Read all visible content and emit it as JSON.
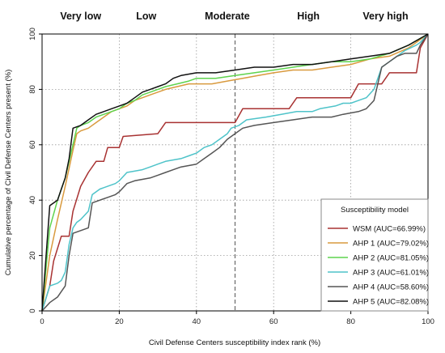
{
  "chart_data": {
    "type": "line",
    "xlabel": "Civil Defense Centers susceptibility index rank (%)",
    "ylabel": "Cumulative percentage of Civil Defense Centers present (%)",
    "xlim": [
      0,
      100
    ],
    "ylim": [
      0,
      100
    ],
    "x_ticks": [
      "0",
      "20",
      "40",
      "60",
      "80",
      "100"
    ],
    "y_ticks": [
      "0",
      "20",
      "40",
      "60",
      "80",
      "100"
    ],
    "grid": "dotted",
    "zones": [
      {
        "label": "Very low",
        "x": 10
      },
      {
        "label": "Low",
        "x": 27
      },
      {
        "label": "Moderate",
        "x": 48
      },
      {
        "label": "High",
        "x": 69
      },
      {
        "label": "Very high",
        "x": 89
      }
    ],
    "dividers_x": [
      20,
      40,
      50,
      60,
      80
    ],
    "dashed_divider_x": 50,
    "legend": {
      "title": "Susceptibility model",
      "position": "bottom-right"
    },
    "series": [
      {
        "name": "WSM (AUC=66.99%)",
        "color": "#a83232",
        "points": [
          [
            0,
            0
          ],
          [
            2,
            9
          ],
          [
            3,
            18
          ],
          [
            5,
            27
          ],
          [
            7,
            27
          ],
          [
            8,
            36
          ],
          [
            10,
            45
          ],
          [
            12,
            50
          ],
          [
            14,
            54
          ],
          [
            16,
            54
          ],
          [
            17,
            59
          ],
          [
            20,
            59
          ],
          [
            21,
            63
          ],
          [
            30,
            64
          ],
          [
            32,
            68
          ],
          [
            50,
            68
          ],
          [
            52,
            73
          ],
          [
            64,
            73
          ],
          [
            66,
            77
          ],
          [
            80,
            77
          ],
          [
            82,
            82
          ],
          [
            88,
            82
          ],
          [
            90,
            86
          ],
          [
            97,
            86
          ],
          [
            98,
            95
          ],
          [
            100,
            100
          ]
        ]
      },
      {
        "name": "AHP 1 (AUC=79.02%)",
        "color": "#d99a3e",
        "points": [
          [
            0,
            0
          ],
          [
            2,
            20
          ],
          [
            4,
            33
          ],
          [
            6,
            45
          ],
          [
            8,
            58
          ],
          [
            9,
            64
          ],
          [
            10,
            65
          ],
          [
            12,
            66
          ],
          [
            14,
            68
          ],
          [
            16,
            70
          ],
          [
            18,
            72
          ],
          [
            20,
            73
          ],
          [
            22,
            74
          ],
          [
            24,
            76
          ],
          [
            26,
            77
          ],
          [
            28,
            78
          ],
          [
            30,
            79
          ],
          [
            32,
            80
          ],
          [
            35,
            81
          ],
          [
            38,
            82
          ],
          [
            40,
            82
          ],
          [
            44,
            82
          ],
          [
            48,
            83
          ],
          [
            52,
            84
          ],
          [
            56,
            85
          ],
          [
            60,
            86
          ],
          [
            65,
            87
          ],
          [
            70,
            87
          ],
          [
            75,
            88
          ],
          [
            80,
            89
          ],
          [
            85,
            91
          ],
          [
            90,
            92
          ],
          [
            95,
            95
          ],
          [
            100,
            100
          ]
        ]
      },
      {
        "name": "AHP 2 (AUC=81.05%)",
        "color": "#5fd34e",
        "points": [
          [
            0,
            0
          ],
          [
            2,
            30
          ],
          [
            4,
            40
          ],
          [
            6,
            48
          ],
          [
            8,
            60
          ],
          [
            9,
            66
          ],
          [
            10,
            67
          ],
          [
            12,
            68
          ],
          [
            14,
            70
          ],
          [
            16,
            71
          ],
          [
            18,
            72
          ],
          [
            20,
            73
          ],
          [
            22,
            75
          ],
          [
            24,
            76
          ],
          [
            26,
            78
          ],
          [
            28,
            79
          ],
          [
            30,
            80
          ],
          [
            32,
            81
          ],
          [
            35,
            82
          ],
          [
            38,
            83
          ],
          [
            40,
            84
          ],
          [
            45,
            84
          ],
          [
            50,
            85
          ],
          [
            55,
            86
          ],
          [
            60,
            87
          ],
          [
            65,
            88
          ],
          [
            70,
            89
          ],
          [
            75,
            90
          ],
          [
            80,
            90
          ],
          [
            85,
            91
          ],
          [
            90,
            93
          ],
          [
            95,
            96
          ],
          [
            100,
            100
          ]
        ]
      },
      {
        "name": "AHP 3 (AUC=61.01%)",
        "color": "#4ec3c9",
        "points": [
          [
            0,
            0
          ],
          [
            2,
            9
          ],
          [
            4,
            10
          ],
          [
            5,
            11
          ],
          [
            6,
            14
          ],
          [
            7,
            24
          ],
          [
            8,
            30
          ],
          [
            9,
            32
          ],
          [
            10,
            33
          ],
          [
            12,
            36
          ],
          [
            13,
            42
          ],
          [
            15,
            44
          ],
          [
            17,
            45
          ],
          [
            19,
            46
          ],
          [
            20,
            47
          ],
          [
            22,
            50
          ],
          [
            26,
            51
          ],
          [
            28,
            52
          ],
          [
            30,
            53
          ],
          [
            32,
            54
          ],
          [
            36,
            55
          ],
          [
            38,
            56
          ],
          [
            40,
            57
          ],
          [
            42,
            59
          ],
          [
            44,
            60
          ],
          [
            46,
            62
          ],
          [
            48,
            64
          ],
          [
            49,
            66
          ],
          [
            51,
            67
          ],
          [
            53,
            69
          ],
          [
            58,
            70
          ],
          [
            62,
            71
          ],
          [
            66,
            72
          ],
          [
            70,
            72
          ],
          [
            72,
            73
          ],
          [
            76,
            74
          ],
          [
            78,
            75
          ],
          [
            80,
            75
          ],
          [
            82,
            76
          ],
          [
            84,
            77
          ],
          [
            86,
            80
          ],
          [
            87,
            84
          ],
          [
            88,
            88
          ],
          [
            90,
            90
          ],
          [
            92,
            92
          ],
          [
            94,
            94
          ],
          [
            97,
            96
          ],
          [
            98,
            97
          ],
          [
            100,
            100
          ]
        ]
      },
      {
        "name": "AHP 4 (AUC=58.60%)",
        "color": "#555555",
        "points": [
          [
            0,
            0
          ],
          [
            2,
            3
          ],
          [
            4,
            5
          ],
          [
            5,
            7
          ],
          [
            6,
            9
          ],
          [
            7,
            20
          ],
          [
            8,
            28
          ],
          [
            10,
            29
          ],
          [
            12,
            30
          ],
          [
            13,
            39
          ],
          [
            15,
            40
          ],
          [
            17,
            41
          ],
          [
            19,
            42
          ],
          [
            20,
            43
          ],
          [
            22,
            46
          ],
          [
            24,
            47
          ],
          [
            28,
            48
          ],
          [
            30,
            49
          ],
          [
            32,
            50
          ],
          [
            34,
            51
          ],
          [
            36,
            52
          ],
          [
            40,
            53
          ],
          [
            42,
            55
          ],
          [
            44,
            57
          ],
          [
            46,
            59
          ],
          [
            48,
            62
          ],
          [
            50,
            64
          ],
          [
            52,
            66
          ],
          [
            55,
            67
          ],
          [
            60,
            68
          ],
          [
            65,
            69
          ],
          [
            70,
            70
          ],
          [
            75,
            70
          ],
          [
            78,
            71
          ],
          [
            82,
            72
          ],
          [
            84,
            73
          ],
          [
            86,
            76
          ],
          [
            87,
            82
          ],
          [
            88,
            88
          ],
          [
            90,
            90
          ],
          [
            92,
            92
          ],
          [
            94,
            93
          ],
          [
            97,
            93
          ],
          [
            98,
            96
          ],
          [
            100,
            100
          ]
        ]
      },
      {
        "name": "AHP 5 (AUC=82.08%)",
        "color": "#111111",
        "points": [
          [
            0,
            0
          ],
          [
            2,
            38
          ],
          [
            3,
            39
          ],
          [
            4,
            40
          ],
          [
            5,
            44
          ],
          [
            6,
            48
          ],
          [
            7,
            55
          ],
          [
            8,
            66
          ],
          [
            10,
            67
          ],
          [
            12,
            69
          ],
          [
            14,
            71
          ],
          [
            16,
            72
          ],
          [
            18,
            73
          ],
          [
            20,
            74
          ],
          [
            22,
            75
          ],
          [
            24,
            77
          ],
          [
            26,
            79
          ],
          [
            28,
            80
          ],
          [
            30,
            81
          ],
          [
            32,
            82
          ],
          [
            34,
            84
          ],
          [
            36,
            85
          ],
          [
            40,
            86
          ],
          [
            45,
            86
          ],
          [
            50,
            87
          ],
          [
            55,
            88
          ],
          [
            60,
            88
          ],
          [
            65,
            89
          ],
          [
            70,
            89
          ],
          [
            75,
            90
          ],
          [
            80,
            91
          ],
          [
            85,
            92
          ],
          [
            90,
            93
          ],
          [
            95,
            96
          ],
          [
            100,
            100
          ]
        ]
      }
    ]
  }
}
